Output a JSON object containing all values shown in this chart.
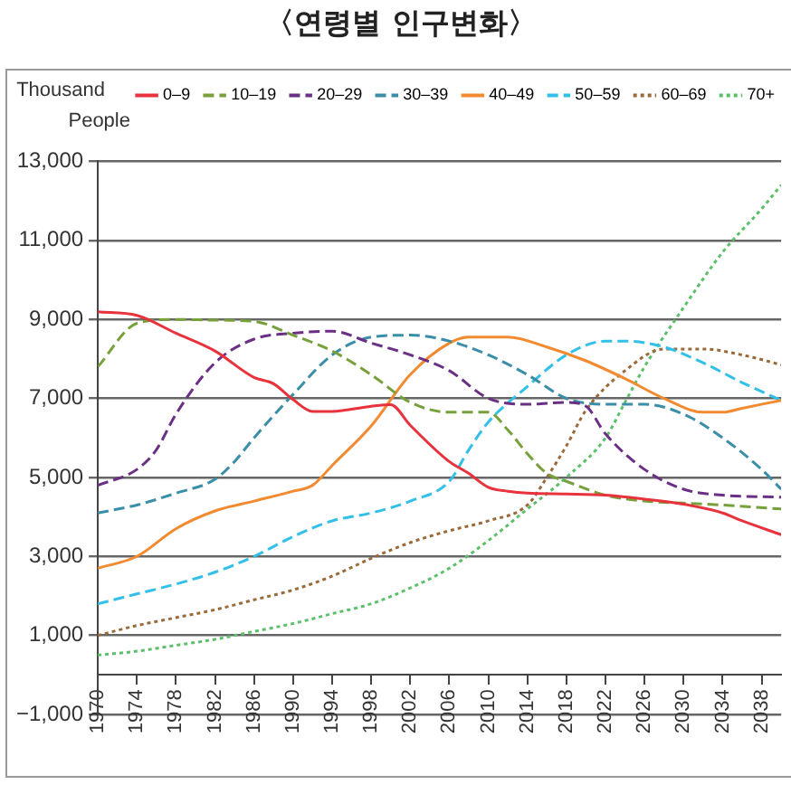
{
  "chart_data": {
    "type": "line",
    "title": "〈연령별 인구변화〉",
    "ylabel": "Thousand People",
    "xlim": [
      1970,
      2040
    ],
    "xticks": [
      1970,
      1974,
      1978,
      1982,
      1986,
      1990,
      1994,
      1998,
      2002,
      2006,
      2010,
      2014,
      2018,
      2022,
      2026,
      2030,
      2034,
      2038
    ],
    "ylim": [
      -1000,
      13000
    ],
    "yticks": [
      {
        "value": -1000,
        "label": "−1,000"
      },
      {
        "value": 1000,
        "label": "1,000"
      },
      {
        "value": 3000,
        "label": "3,000"
      },
      {
        "value": 5000,
        "label": "5,000"
      },
      {
        "value": 7000,
        "label": "7,000"
      },
      {
        "value": 9000,
        "label": "9,000"
      },
      {
        "value": 11000,
        "label": "11,000"
      },
      {
        "value": 13000,
        "label": "13,000"
      }
    ],
    "grid": "y",
    "legend": "top",
    "marker": "none",
    "series": [
      {
        "name": "0–9",
        "color": "#e8323c",
        "line_style": "solid",
        "x": [
          1970,
          1974,
          1978,
          1982,
          1986,
          1988,
          1990,
          1992,
          1994,
          1998,
          2000,
          2002,
          2006,
          2008,
          2010,
          2012,
          2014,
          2018,
          2022,
          2026,
          2030,
          2034,
          2036,
          2040
        ],
        "values": [
          9190,
          9100,
          8650,
          8200,
          7530,
          7370,
          6970,
          6670,
          6670,
          6800,
          6840,
          6320,
          5400,
          5100,
          4750,
          4650,
          4600,
          4580,
          4550,
          4450,
          4320,
          4100,
          3900,
          3550
        ]
      },
      {
        "name": "10–19",
        "color": "#77a03a",
        "line_style": "dashed",
        "x": [
          1970,
          1974,
          1978,
          1982,
          1986,
          1990,
          1994,
          1998,
          2002,
          2006,
          2010,
          2012,
          2014,
          2016,
          2018,
          2022,
          2026,
          2030,
          2034,
          2040
        ],
        "values": [
          7800,
          8900,
          9000,
          8980,
          8950,
          8600,
          8200,
          7600,
          6900,
          6650,
          6650,
          6200,
          5600,
          5100,
          4900,
          4550,
          4400,
          4350,
          4300,
          4200
        ]
      },
      {
        "name": "20–29",
        "color": "#6b2f85",
        "line_style": "dashed",
        "x": [
          1970,
          1974,
          1976,
          1978,
          1982,
          1986,
          1990,
          1994,
          1998,
          2002,
          2006,
          2010,
          2014,
          2018,
          2020,
          2022,
          2026,
          2030,
          2034,
          2040
        ],
        "values": [
          4800,
          5200,
          5700,
          6600,
          7900,
          8500,
          8650,
          8700,
          8400,
          8100,
          7700,
          7000,
          6850,
          6900,
          6800,
          6100,
          5200,
          4700,
          4550,
          4500
        ]
      },
      {
        "name": "30–39",
        "color": "#3a8ea8",
        "line_style": "dashed",
        "x": [
          1970,
          1974,
          1978,
          1982,
          1984,
          1986,
          1990,
          1994,
          1998,
          2002,
          2006,
          2010,
          2014,
          2018,
          2022,
          2026,
          2030,
          2034,
          2038,
          2040
        ],
        "values": [
          4100,
          4300,
          4600,
          4950,
          5400,
          6000,
          7100,
          8100,
          8550,
          8600,
          8450,
          8100,
          7600,
          7000,
          6850,
          6850,
          6600,
          6000,
          5200,
          4700
        ]
      },
      {
        "name": "40–49",
        "color": "#f28a30",
        "line_style": "solid",
        "x": [
          1970,
          1974,
          1978,
          1982,
          1986,
          1990,
          1992,
          1994,
          1998,
          2002,
          2006,
          2008,
          2012,
          2016,
          2020,
          2024,
          2028,
          2032,
          2034,
          2036,
          2040
        ],
        "values": [
          2700,
          3000,
          3700,
          4150,
          4400,
          4650,
          4800,
          5300,
          6300,
          7600,
          8400,
          8550,
          8550,
          8300,
          7950,
          7500,
          7000,
          6650,
          6650,
          6750,
          6950
        ]
      },
      {
        "name": "50–59",
        "color": "#33c0e8",
        "line_style": "dashed",
        "x": [
          1970,
          1974,
          1978,
          1982,
          1986,
          1990,
          1994,
          1998,
          2002,
          2006,
          2008,
          2010,
          2014,
          2018,
          2022,
          2024,
          2028,
          2032,
          2036,
          2040
        ],
        "values": [
          1800,
          2050,
          2300,
          2600,
          3000,
          3500,
          3900,
          4100,
          4400,
          4900,
          5700,
          6400,
          7300,
          8100,
          8450,
          8450,
          8300,
          7900,
          7400,
          6950
        ]
      },
      {
        "name": "60–69",
        "color": "#9a6a3a",
        "line_style": "dotted",
        "x": [
          1970,
          1974,
          1978,
          1982,
          1986,
          1990,
          1994,
          1998,
          2002,
          2006,
          2010,
          2014,
          2016,
          2018,
          2020,
          2024,
          2028,
          2032,
          2036,
          2040
        ],
        "values": [
          1000,
          1250,
          1450,
          1650,
          1900,
          2150,
          2500,
          2950,
          3350,
          3650,
          3900,
          4300,
          5000,
          5800,
          6700,
          7700,
          8250,
          8250,
          8100,
          7850
        ]
      },
      {
        "name": "70+",
        "color": "#5cbf6a",
        "line_style": "dotted",
        "x": [
          1970,
          1974,
          1978,
          1982,
          1986,
          1990,
          1994,
          1998,
          2002,
          2006,
          2010,
          2014,
          2018,
          2022,
          2024,
          2026,
          2030,
          2034,
          2038,
          2040
        ],
        "values": [
          500,
          600,
          750,
          900,
          1100,
          1300,
          1550,
          1800,
          2200,
          2700,
          3400,
          4200,
          5000,
          6000,
          6900,
          7800,
          9300,
          10700,
          11800,
          12400
        ]
      }
    ]
  }
}
